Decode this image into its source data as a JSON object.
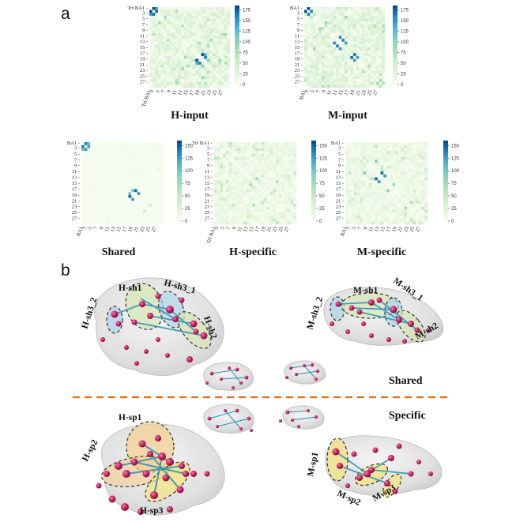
{
  "panel_a_label": "a",
  "panel_b_label": "b",
  "colorbar": {
    "colors": [
      "#f7fcf0",
      "#e0f3db",
      "#ccebc5",
      "#a8ddb5",
      "#7bccc4",
      "#4eb3d3",
      "#2b8cbe",
      "#0868ac",
      "#084081"
    ]
  },
  "chart_data": [
    {
      "type": "heatmap",
      "title": "H-input",
      "first_label": "Trf BA1",
      "tick_labels": [
        "3",
        "5",
        "7",
        "9",
        "11",
        "13",
        "15",
        "17",
        "19",
        "21",
        "23",
        "25",
        "27"
      ],
      "colorbar_ticks": [
        0,
        25,
        50,
        75,
        100,
        125,
        150,
        175
      ],
      "vmax": 185
    },
    {
      "type": "heatmap",
      "title": "M-input",
      "first_label": "BA1",
      "tick_labels": [
        "3",
        "5",
        "7",
        "9",
        "11",
        "13",
        "15",
        "17",
        "19",
        "21",
        "23",
        "25",
        "27"
      ],
      "colorbar_ticks": [
        0,
        25,
        50,
        75,
        100,
        125,
        150,
        175
      ],
      "vmax": 185
    },
    {
      "type": "heatmap",
      "title": "Shared",
      "first_label": "BA1",
      "tick_labels": [
        "3",
        "5",
        "7",
        "9",
        "11",
        "13",
        "15",
        "17",
        "19",
        "21",
        "23",
        "25",
        "27"
      ],
      "colorbar_ticks": [
        0,
        25,
        50,
        75,
        100,
        125,
        150
      ],
      "vmax": 160
    },
    {
      "type": "heatmap",
      "title": "H-specific",
      "first_label": "Trf BA1",
      "tick_labels": [
        "3",
        "5",
        "7",
        "9",
        "11",
        "13",
        "15",
        "17",
        "19",
        "21",
        "23",
        "25",
        "27"
      ],
      "colorbar_ticks": [
        0,
        25,
        50,
        75,
        100,
        125,
        150
      ],
      "vmax": 160
    },
    {
      "type": "heatmap",
      "title": "M-specific",
      "first_label": "BA1",
      "tick_labels": [
        "3",
        "5",
        "7",
        "9",
        "11",
        "13",
        "15",
        "17",
        "19",
        "21",
        "23",
        "25",
        "27"
      ],
      "colorbar_ticks": [
        0,
        25,
        50,
        75,
        100,
        125,
        150
      ],
      "vmax": 160
    }
  ],
  "panel_b": {
    "row_labels": {
      "shared": "Shared",
      "specific": "Specific"
    },
    "groups": {
      "h_sh3_2": "H-sh3_2",
      "h_sh1": "H-sh1",
      "h_sh3_1": "H-sh3_1",
      "h_sh2": "H-sh2",
      "m_sh3_2": "M-sh3_2",
      "m_sh1": "M-sh1",
      "m_sh3_1": "M-sh3_1",
      "m_sh2": "M-sh2",
      "h_sp1": "H-sp1",
      "h_sp2": "H-sp2",
      "h_sp3": "H-sp3",
      "m_sp1": "M-sp1",
      "m_sp2": "M-sp2",
      "m_sp3": "M-sp3"
    },
    "colors": {
      "node": "#c0185a",
      "edge": "#2a8fb5",
      "shared_fill": "#d6e6b4",
      "shared_fill2": "#a9d2ea",
      "specific_fill": "#f3cf8f",
      "specific_fill2": "#f2e47a",
      "divider": "#d4711c"
    }
  }
}
